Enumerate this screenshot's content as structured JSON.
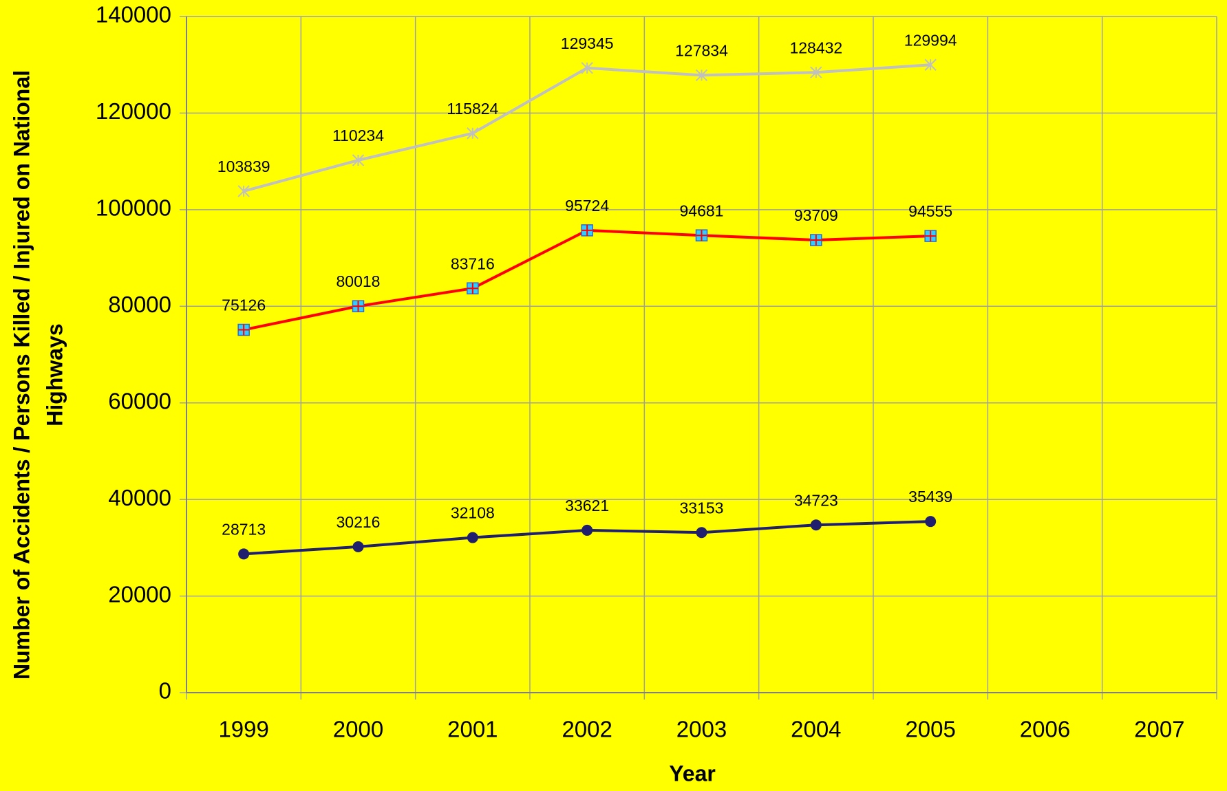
{
  "chart_data": {
    "type": "line",
    "xlabel": "Year",
    "ylabel": [
      "Number of Accidents / Persons Killed / Injured on National",
      "Highways"
    ],
    "categories": [
      "1999",
      "2000",
      "2001",
      "2002",
      "2003",
      "2004",
      "2005",
      "2006",
      "2007"
    ],
    "series": [
      {
        "color": "#1f1f6e",
        "marker": "circle",
        "values": [
          28713,
          30216,
          32108,
          33621,
          33153,
          34723,
          35439,
          null,
          null
        ]
      },
      {
        "color": "#ff0000",
        "marker": "square",
        "values": [
          75126,
          80018,
          83716,
          95724,
          94681,
          93709,
          94555,
          null,
          null
        ]
      },
      {
        "color": "#c0c0c0",
        "marker": "star",
        "values": [
          103839,
          110234,
          115824,
          129345,
          127834,
          128432,
          129994,
          null,
          null
        ]
      }
    ],
    "ylim": [
      0,
      140000
    ],
    "yticks": [
      0,
      20000,
      40000,
      60000,
      80000,
      100000,
      120000,
      140000
    ],
    "grid": true
  }
}
